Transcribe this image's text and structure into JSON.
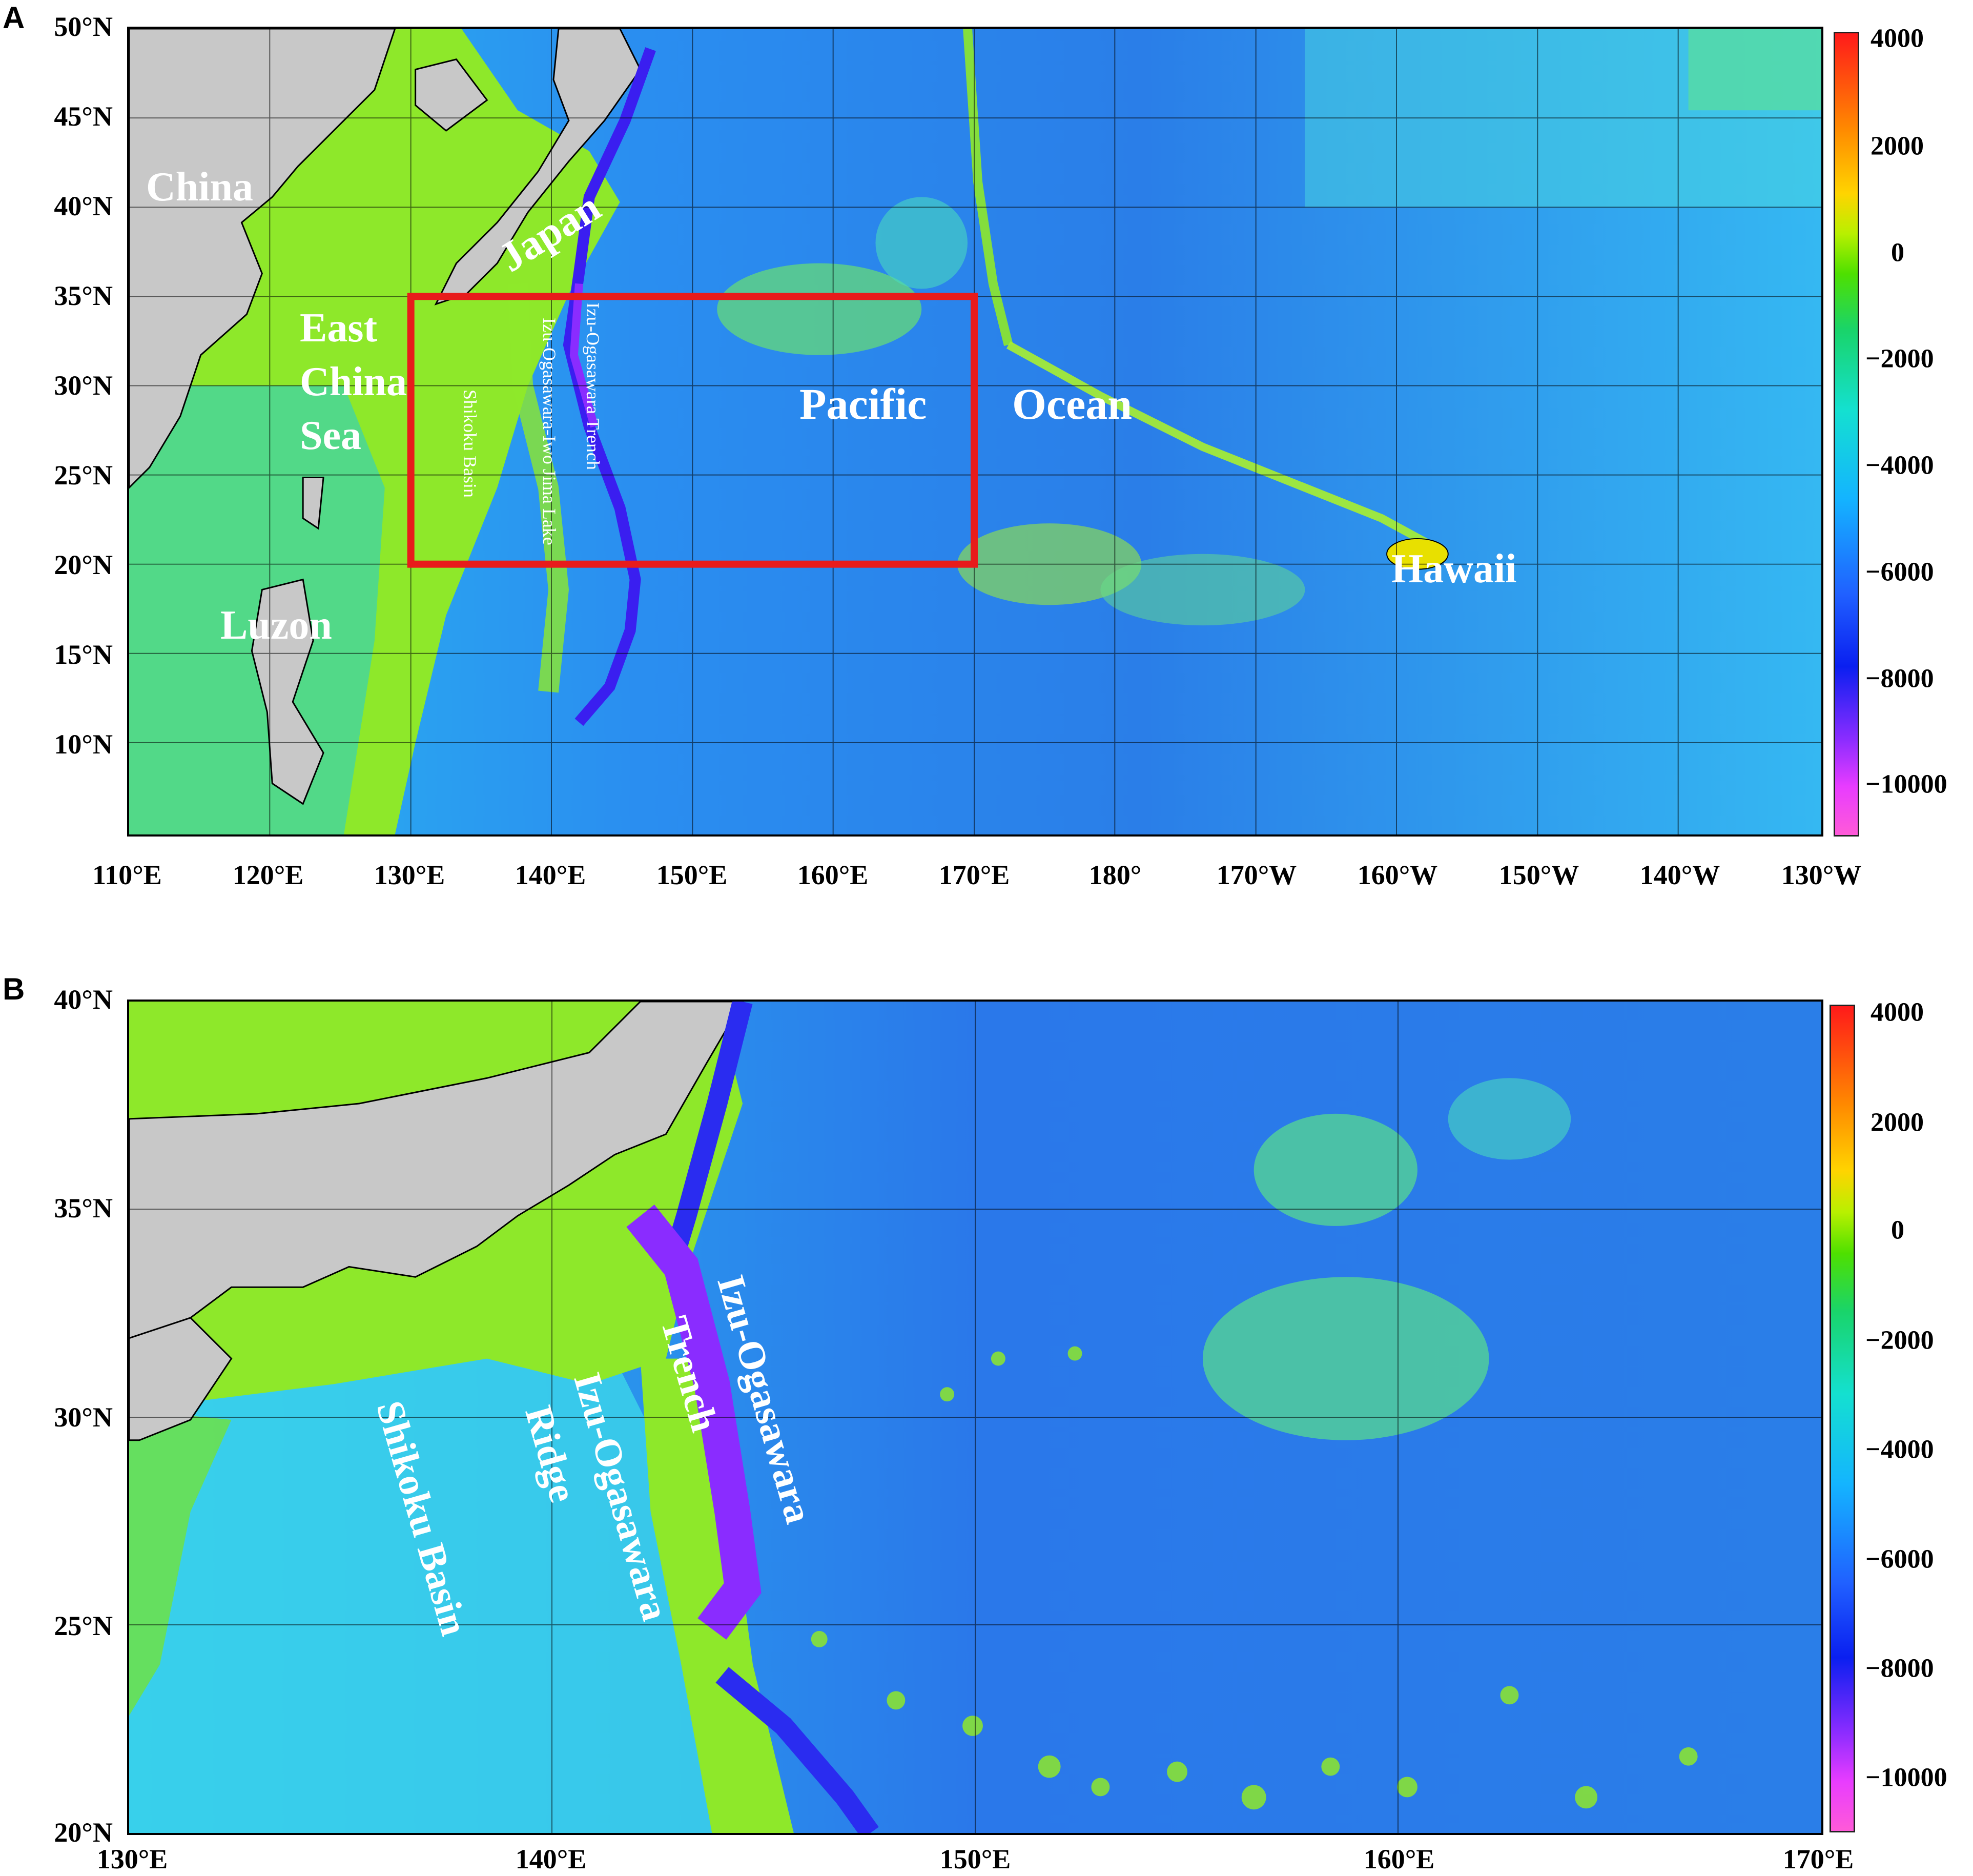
{
  "panel_a": {
    "letter": "A",
    "lat_ticks": [
      "50°N",
      "45°N",
      "40°N",
      "35°N",
      "30°N",
      "25°N",
      "20°N",
      "15°N",
      "10°N"
    ],
    "lon_ticks": [
      "110°E",
      "120°E",
      "130°E",
      "140°E",
      "150°E",
      "160°E",
      "170°E",
      "180°",
      "170°W",
      "160°W",
      "150°W",
      "140°W",
      "130°W"
    ],
    "labels": {
      "china": "China",
      "japan": "Japan",
      "east": "East",
      "china2": "China",
      "sea": "Sea",
      "luzon": "Luzon",
      "pacific": "Pacific",
      "ocean": "Ocean",
      "hawaii": "Hawaii",
      "shikoku": "Shikoku Basin",
      "iwojima": "Izu-Ogasawara-Iwo Jima Lake",
      "trench": "Izu-Ogasawara Trench"
    },
    "colorbar_ticks": [
      "4000",
      "2000",
      "0",
      "−2000",
      "−4000",
      "−6000",
      "−8000",
      "−10000"
    ]
  },
  "panel_b": {
    "letter": "B",
    "lat_ticks": [
      "40°N",
      "35°N",
      "30°N",
      "25°N",
      "20°N"
    ],
    "lon_ticks": [
      "130°E",
      "140°E",
      "150°E",
      "160°E",
      "170°E"
    ],
    "labels": {
      "shikoku": "Shikoku Basin",
      "ridge1": "Izu-Ogasawara",
      "ridge2": "Ridge",
      "trench1": "Trench",
      "trench2": "Izu-Ogasawara"
    },
    "colorbar_ticks": [
      "4000",
      "2000",
      "0",
      "−2000",
      "−4000",
      "−6000",
      "−8000",
      "−10000"
    ]
  },
  "colors": {
    "land": "#c8c8c8",
    "shelf": "#8ee82a",
    "ocean_mid": "#2fb8f0",
    "ocean_deep": "#2a5fe6",
    "trench": "#6a2cf0",
    "study_box": "#e81b1b"
  }
}
